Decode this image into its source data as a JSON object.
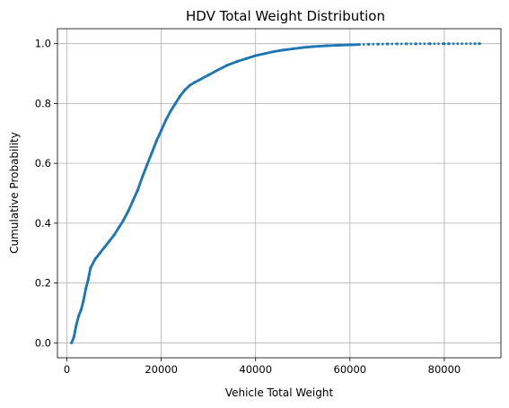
{
  "chart_data": {
    "type": "scatter",
    "title": "HDV Total Weight Distribution",
    "xlabel": "Vehicle Total Weight",
    "ylabel": "Cumulative Probability",
    "xlim": [
      -2000,
      92000
    ],
    "ylim": [
      -0.05,
      1.05
    ],
    "xticks": [
      0,
      20000,
      40000,
      60000,
      80000
    ],
    "xtick_labels": [
      "0",
      "20000",
      "40000",
      "60000",
      "80000"
    ],
    "yticks": [
      0.0,
      0.2,
      0.4,
      0.6,
      0.8,
      1.0
    ],
    "ytick_labels": [
      "0.0",
      "0.2",
      "0.4",
      "0.6",
      "0.8",
      "1.0"
    ],
    "grid": true,
    "marker_color": "#1f77b4",
    "series": [
      {
        "x": [
          1000,
          1500,
          2000,
          2500,
          3000,
          3500,
          4000,
          4500,
          5000,
          6000,
          7000,
          8000,
          9000,
          10000,
          11000,
          12000,
          13000,
          14000,
          15000,
          16000,
          17000,
          18000,
          19000,
          20000,
          21000,
          22000,
          23000,
          24000,
          25000,
          26000,
          27000,
          28000,
          30000,
          32000,
          34000,
          36000,
          38000,
          40000,
          42000,
          44000,
          46000,
          48000,
          50000,
          52000,
          55000,
          58000,
          60000,
          62000,
          64000,
          66000,
          68000,
          70000,
          72000,
          74000,
          77000,
          80000,
          81000,
          86500,
          87500
        ],
        "y": [
          0.0,
          0.02,
          0.06,
          0.09,
          0.11,
          0.14,
          0.18,
          0.21,
          0.25,
          0.28,
          0.3,
          0.32,
          0.34,
          0.36,
          0.385,
          0.41,
          0.44,
          0.475,
          0.51,
          0.555,
          0.595,
          0.635,
          0.675,
          0.71,
          0.745,
          0.775,
          0.8,
          0.825,
          0.845,
          0.86,
          0.87,
          0.878,
          0.895,
          0.912,
          0.928,
          0.94,
          0.95,
          0.96,
          0.967,
          0.974,
          0.979,
          0.983,
          0.987,
          0.99,
          0.993,
          0.995,
          0.996,
          0.997,
          0.998,
          0.9985,
          0.999,
          0.9993,
          0.9995,
          0.9996,
          0.9997,
          0.9998,
          0.9999,
          0.99995,
          1.0
        ]
      }
    ]
  }
}
